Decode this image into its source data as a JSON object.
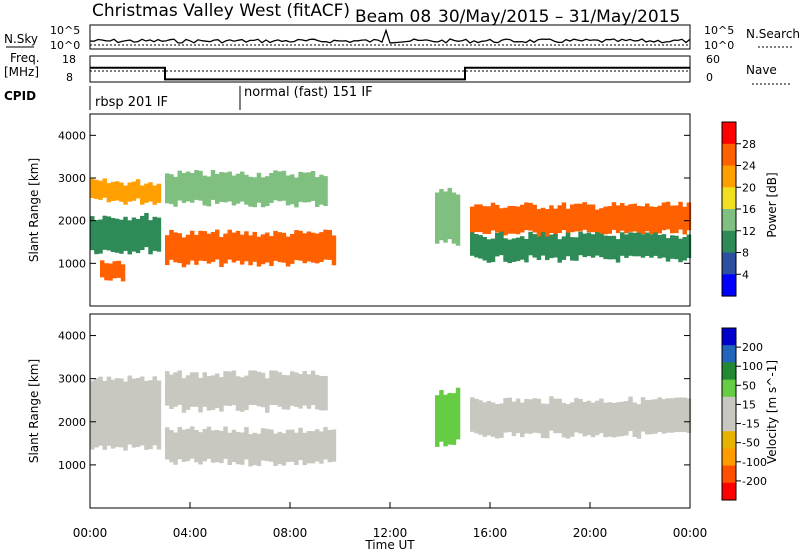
{
  "header": {
    "title": "Christmas Valley West (fitACF)",
    "beam": "Beam 08",
    "date_range": "30/May/2015 – 31/May/2015"
  },
  "labels": {
    "nsky": "N.Sky",
    "freq_line1": "Freq.",
    "freq_line2": "[MHz]",
    "cpid": "CPID",
    "nsearch": "N.Search",
    "nave": "Nave",
    "nsky_tick_top": "10^5",
    "nsky_tick_bottom": "10^0",
    "nsearch_tick_top": "10^5",
    "nsearch_tick_bottom": "10^0",
    "freq_tick_top": "18",
    "freq_tick_bottom": "8",
    "nave_tick_top": "60",
    "nave_tick_bottom": "0",
    "cpid_1": "rbsp 201 IF",
    "cpid_2": "normal (fast) 151 IF"
  },
  "colors": {
    "power": [
      "#0000ff",
      "#2d4fa0",
      "#2e8b57",
      "#7fbf7f",
      "#f0e020",
      "#ffa000",
      "#ff6000",
      "#ff0000"
    ],
    "velocity": [
      "#ff0000",
      "#ff5000",
      "#ff9a00",
      "#e6b400",
      "#c8c8c0",
      "#c8c8c0",
      "#66cc44",
      "#228833",
      "#2266bb",
      "#0000cc"
    ]
  },
  "chart_data": [
    {
      "type": "heatmap",
      "title": "Power",
      "ylabel": "Slant Range [km]",
      "colorbar_label": "Power [dB]",
      "colorbar_ticks": [
        "4",
        "8",
        "12",
        "16",
        "20",
        "24",
        "28"
      ],
      "yticks": [
        "1000",
        "2000",
        "3000",
        "4000"
      ],
      "ylim": [
        0,
        4500
      ],
      "x_hours_lim": [
        0,
        24
      ],
      "bands": [
        {
          "start": 0.0,
          "end": 2.9,
          "range": [
            2450,
            2900
          ],
          "value": 22
        },
        {
          "start": 0.0,
          "end": 2.9,
          "range": [
            1300,
            2100
          ],
          "value": 10
        },
        {
          "start": 0.4,
          "end": 1.4,
          "range": [
            650,
            1050
          ],
          "value": 26
        },
        {
          "start": 3.0,
          "end": 9.8,
          "range": [
            1000,
            1700
          ],
          "value": 27
        },
        {
          "start": 3.0,
          "end": 9.5,
          "range": [
            2400,
            3100
          ],
          "value": 15
        },
        {
          "start": 13.8,
          "end": 14.8,
          "range": [
            1500,
            2700
          ],
          "value": 14
        },
        {
          "start": 15.2,
          "end": 24.0,
          "range": [
            1700,
            2350
          ],
          "value": 24
        },
        {
          "start": 15.2,
          "end": 24.0,
          "range": [
            1100,
            1650
          ],
          "value": 10
        }
      ]
    },
    {
      "type": "heatmap",
      "title": "Velocity",
      "ylabel": "Slant Range [km]",
      "xlabel": "Time UT",
      "colorbar_label": "Velocity [m s^-1]",
      "colorbar_ticks": [
        "200",
        "100",
        "50",
        "15",
        "-15",
        "-50",
        "-100",
        "-200"
      ],
      "xticks": [
        "00:00",
        "04:00",
        "08:00",
        "12:00",
        "16:00",
        "20:00",
        "00:00"
      ],
      "yticks": [
        "1000",
        "2000",
        "3000",
        "4000"
      ],
      "ylim": [
        0,
        4500
      ],
      "x_hours_lim": [
        0,
        24
      ],
      "bands": [
        {
          "start": 0.0,
          "end": 2.9,
          "range": [
            1400,
            3000
          ],
          "value": 0
        },
        {
          "start": 3.0,
          "end": 9.8,
          "range": [
            1050,
            1800
          ],
          "value": 0
        },
        {
          "start": 3.0,
          "end": 9.5,
          "range": [
            2300,
            3100
          ],
          "value": 0
        },
        {
          "start": 13.8,
          "end": 14.8,
          "range": [
            1500,
            2700
          ],
          "value": 40
        },
        {
          "start": 15.2,
          "end": 24.0,
          "range": [
            1700,
            2500
          ],
          "value": 0
        }
      ]
    }
  ],
  "frequency_mhz": [
    {
      "start": 0,
      "end": 3,
      "value": 13.5
    },
    {
      "start": 3,
      "end": 15,
      "value": 9
    },
    {
      "start": 15,
      "end": 24,
      "value": 13.5
    }
  ]
}
